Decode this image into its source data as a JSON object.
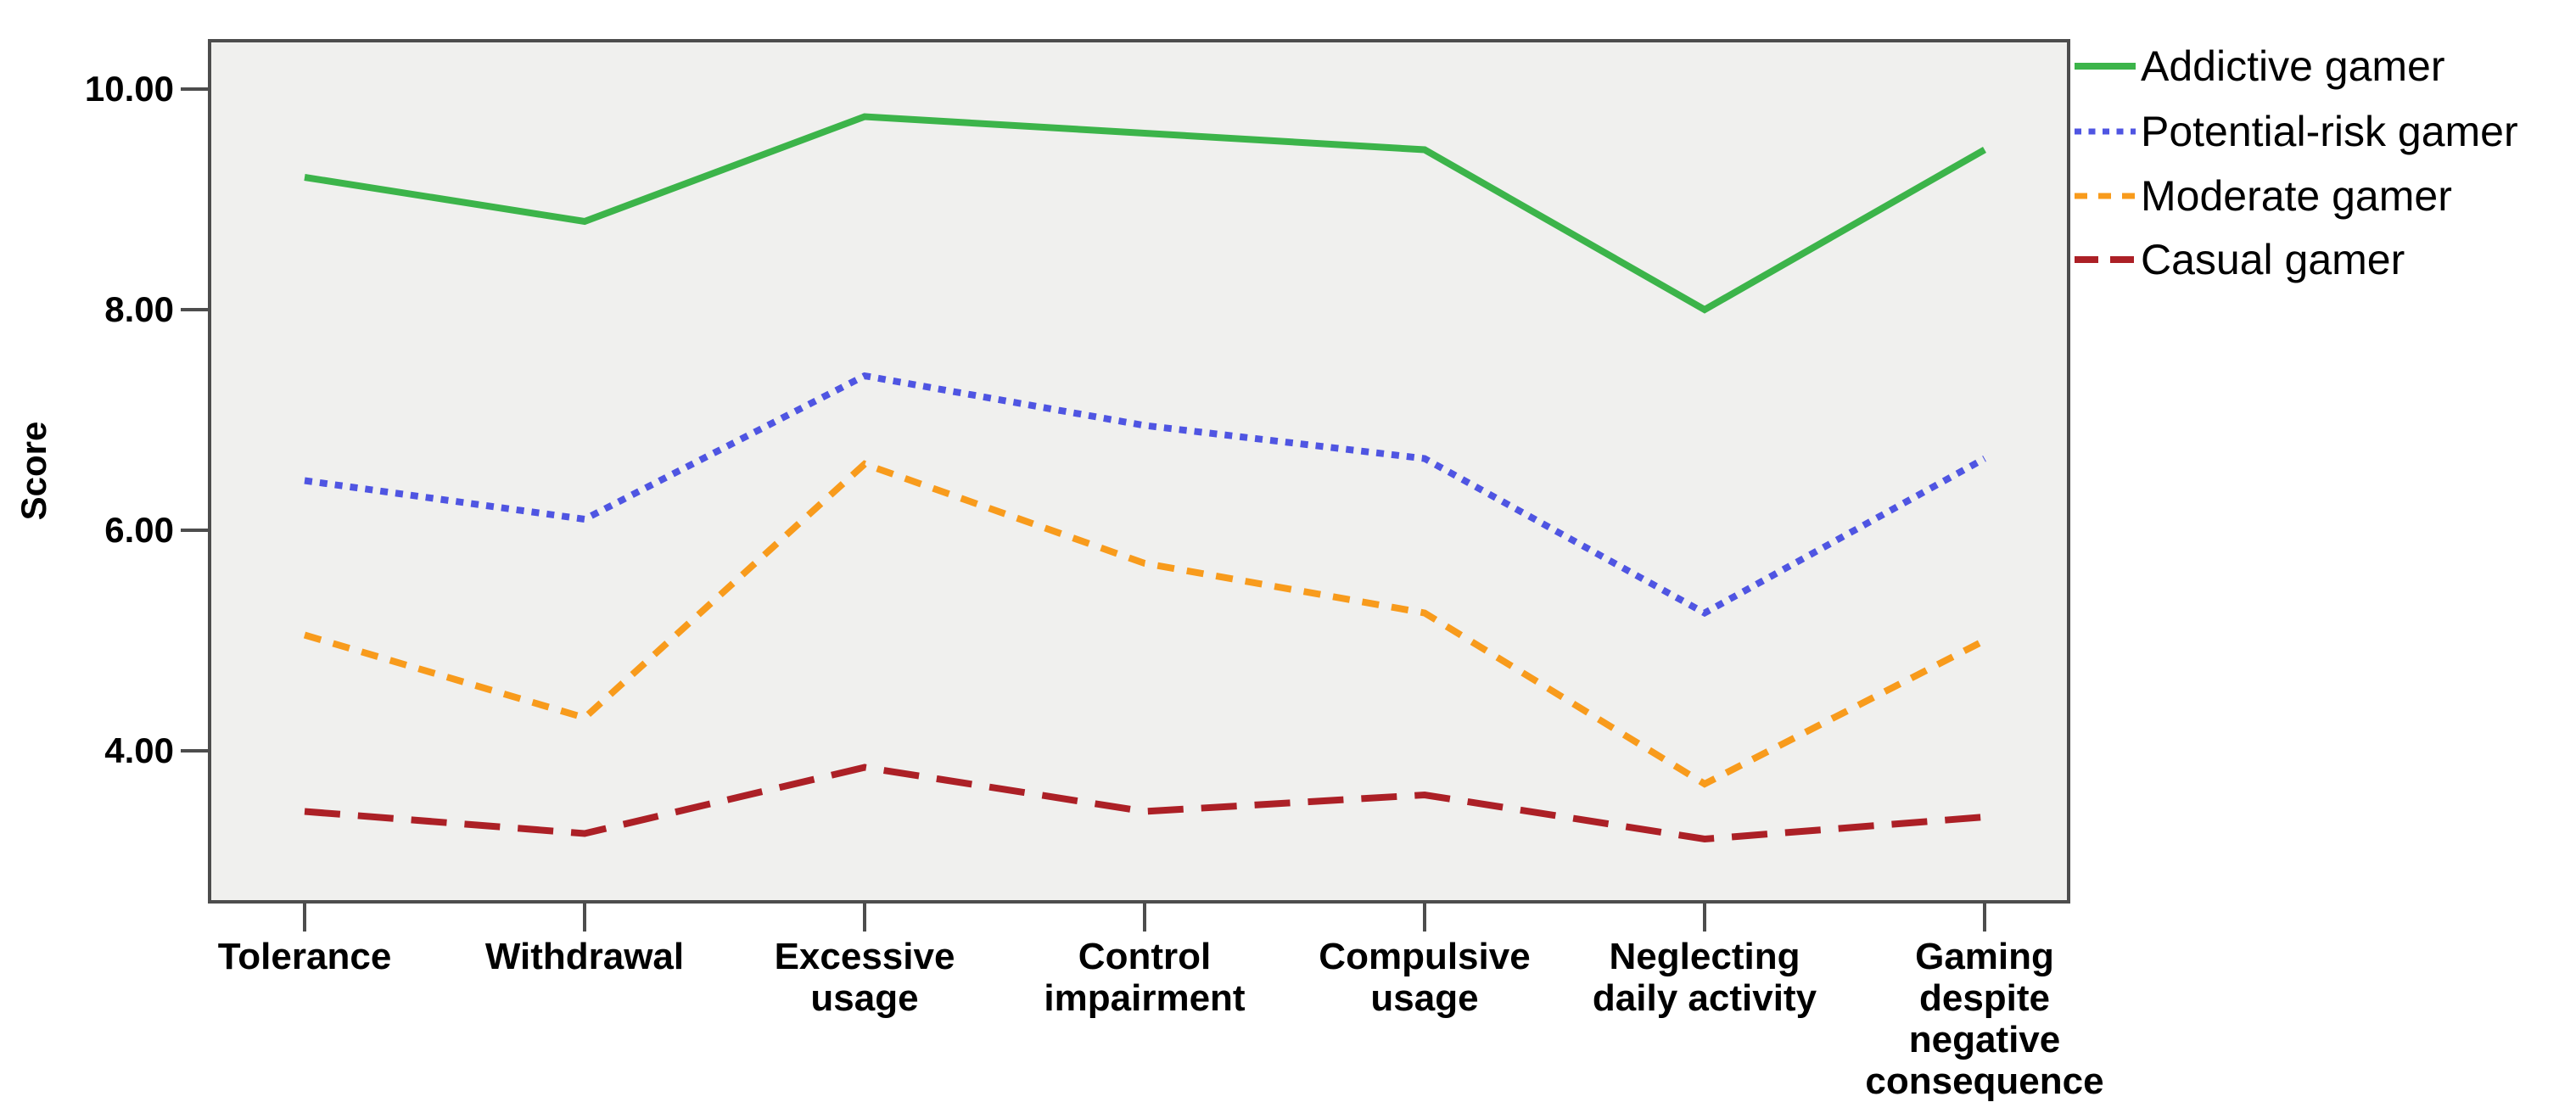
{
  "figure": {
    "background": "#ffffff",
    "plot_background": "#f0f0ee",
    "frame_color": "#4d4d4d",
    "text_color": "#000000"
  },
  "chart_data": {
    "type": "line",
    "title": "",
    "xlabel": "",
    "ylabel": "Score",
    "grid": false,
    "legend_position": "outside-top-right",
    "ylim": [
      2.6,
      10.45
    ],
    "y_ticks": [
      {
        "label": "10.00",
        "value": 10
      },
      {
        "label": "8.00",
        "value": 8
      },
      {
        "label": "6.00",
        "value": 6
      },
      {
        "label": "4.00",
        "value": 4
      }
    ],
    "categories": [
      "Tolerance",
      "Withdrawal",
      "Excessive\nusage",
      "Control\nimpairment",
      "Compulsive\nusage",
      "Neglecting\ndaily activity",
      "Gaming\ndespite\nnegative\nconsequence"
    ],
    "series": [
      {
        "name": "Addictive gamer",
        "color": "#3cb44a",
        "style": "solid",
        "values": [
          9.2,
          8.8,
          9.75,
          9.6,
          9.45,
          8.0,
          9.45
        ]
      },
      {
        "name": "Potential-risk gamer",
        "color": "#4f55e2",
        "style": "dotted",
        "values": [
          6.45,
          6.1,
          7.4,
          6.95,
          6.65,
          5.25,
          6.65
        ]
      },
      {
        "name": "Moderate gamer",
        "color": "#f89b1c",
        "style": "dashed",
        "values": [
          5.05,
          4.3,
          6.6,
          5.7,
          5.25,
          3.7,
          5.0
        ]
      },
      {
        "name": "Casual gamer",
        "color": "#ac2026",
        "style": "long-dash",
        "values": [
          3.45,
          3.25,
          3.85,
          3.45,
          3.6,
          3.2,
          3.4
        ]
      }
    ]
  }
}
